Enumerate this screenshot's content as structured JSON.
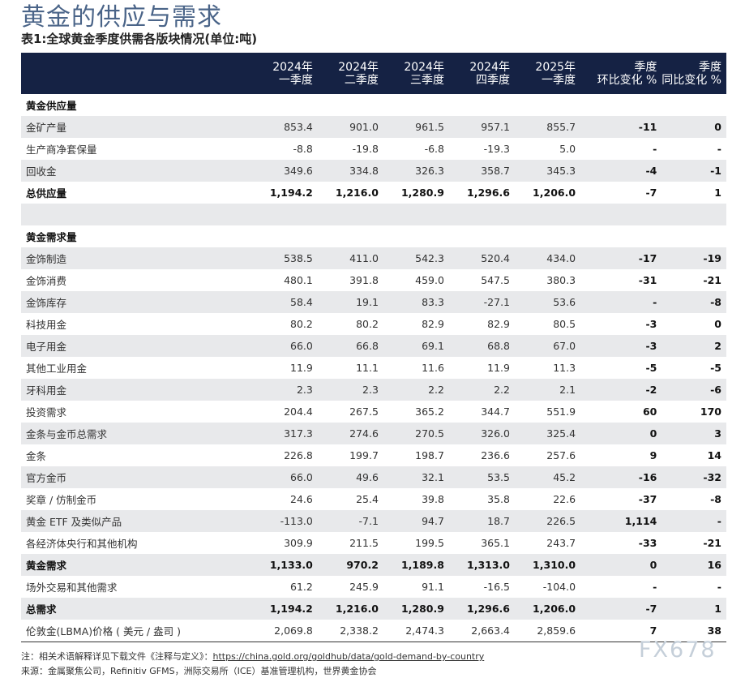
{
  "title": "黄金的供应与需求",
  "subtitle": "表1:全球黄金季度供需各版块情况(单位:吨)",
  "columns": [
    [
      "",
      ""
    ],
    [
      "2024年",
      "一季度"
    ],
    [
      "2024年",
      "二季度"
    ],
    [
      "2024年",
      "三季度"
    ],
    [
      "2024年",
      "四季度"
    ],
    [
      "2025年",
      "一季度"
    ],
    [
      "季度",
      "环比变化 %"
    ],
    [
      "季度",
      "同比变化 %"
    ]
  ],
  "rows": [
    {
      "label": "黄金供应量",
      "values": [
        "",
        "",
        "",
        "",
        "",
        "",
        ""
      ],
      "bold": true,
      "gray": false
    },
    {
      "label": "金矿产量",
      "values": [
        "853.4",
        "901.0",
        "961.5",
        "957.1",
        "855.7",
        "-11",
        "0"
      ],
      "gray": true
    },
    {
      "label": "生产商净套保量",
      "values": [
        "-8.8",
        "-19.8",
        "-6.8",
        "-19.3",
        "5.0",
        "-",
        "-"
      ],
      "gray": false
    },
    {
      "label": "回收金",
      "values": [
        "349.6",
        "334.8",
        "326.3",
        "358.7",
        "345.3",
        "-4",
        "-1"
      ],
      "gray": true
    },
    {
      "label": "总供应量",
      "values": [
        "1,194.2",
        "1,216.0",
        "1,280.9",
        "1,296.6",
        "1,206.0",
        "-7",
        "1"
      ],
      "bold": true,
      "gray": false
    },
    {
      "label": "",
      "values": [
        "",
        "",
        "",
        "",
        "",
        "",
        ""
      ],
      "gray": true
    },
    {
      "label": "黄金需求量",
      "values": [
        "",
        "",
        "",
        "",
        "",
        "",
        ""
      ],
      "bold": true,
      "gray": false
    },
    {
      "label": "金饰制造",
      "values": [
        "538.5",
        "411.0",
        "542.3",
        "520.4",
        "434.0",
        "-17",
        "-19"
      ],
      "gray": true
    },
    {
      "label": "金饰消费",
      "values": [
        "480.1",
        "391.8",
        "459.0",
        "547.5",
        "380.3",
        "-31",
        "-21"
      ],
      "gray": false
    },
    {
      "label": "金饰库存",
      "values": [
        "58.4",
        "19.1",
        "83.3",
        "-27.1",
        "53.6",
        "-",
        "-8"
      ],
      "gray": true
    },
    {
      "label": "科技用金",
      "values": [
        "80.2",
        "80.2",
        "82.9",
        "82.9",
        "80.5",
        "-3",
        "0"
      ],
      "gray": false
    },
    {
      "label": "电子用金",
      "values": [
        "66.0",
        "66.8",
        "69.1",
        "68.8",
        "67.0",
        "-3",
        "2"
      ],
      "gray": true
    },
    {
      "label": "其他工业用金",
      "values": [
        "11.9",
        "11.1",
        "11.6",
        "11.9",
        "11.3",
        "-5",
        "-5"
      ],
      "gray": false
    },
    {
      "label": "牙科用金",
      "values": [
        "2.3",
        "2.3",
        "2.2",
        "2.2",
        "2.1",
        "-2",
        "-6"
      ],
      "gray": true
    },
    {
      "label": "投资需求",
      "values": [
        "204.4",
        "267.5",
        "365.2",
        "344.7",
        "551.9",
        "60",
        "170"
      ],
      "gray": false
    },
    {
      "label": "金条与金币总需求",
      "values": [
        "317.3",
        "274.6",
        "270.5",
        "326.0",
        "325.4",
        "0",
        "3"
      ],
      "gray": true
    },
    {
      "label": "金条",
      "values": [
        "226.8",
        "199.7",
        "198.7",
        "236.6",
        "257.6",
        "9",
        "14"
      ],
      "gray": false
    },
    {
      "label": "官方金币",
      "values": [
        "66.0",
        "49.6",
        "32.1",
        "53.5",
        "45.2",
        "-16",
        "-32"
      ],
      "gray": true
    },
    {
      "label": "奖章 / 仿制金币",
      "values": [
        "24.6",
        "25.4",
        "39.8",
        "35.8",
        "22.6",
        "-37",
        "-8"
      ],
      "gray": false
    },
    {
      "label": "黄金 ETF 及类似产品",
      "values": [
        "-113.0",
        "-7.1",
        "94.7",
        "18.7",
        "226.5",
        "1,114",
        "-"
      ],
      "gray": true
    },
    {
      "label": "各经济体央行和其他机构",
      "values": [
        "309.9",
        "211.5",
        "199.5",
        "365.1",
        "243.7",
        "-33",
        "-21"
      ],
      "gray": false
    },
    {
      "label": "黄金需求",
      "values": [
        "1,133.0",
        "970.2",
        "1,189.8",
        "1,313.0",
        "1,310.0",
        "0",
        "16"
      ],
      "bold": true,
      "gray": true
    },
    {
      "label": "场外交易和其他需求",
      "values": [
        "61.2",
        "245.9",
        "91.1",
        "-16.5",
        "-104.0",
        "-",
        "-"
      ],
      "gray": false
    },
    {
      "label": "总需求",
      "values": [
        "1,194.2",
        "1,216.0",
        "1,280.9",
        "1,296.6",
        "1,206.0",
        "-7",
        "1"
      ],
      "bold": true,
      "gray": true
    },
    {
      "label": "伦敦金(LBMA)价格 ( 美元 / 盎司 )",
      "values": [
        "2,069.8",
        "2,338.2",
        "2,474.3",
        "2,663.4",
        "2,859.6",
        "7",
        "38"
      ],
      "gray": false
    }
  ],
  "notes": {
    "note_prefix": "注：相关术语解释详见下载文件《注释与定义》：",
    "note_link": "https://china.gold.org/goldhub/data/gold-demand-by-country",
    "source": "来源：金属聚焦公司，Refinitiv GFMS，洲际交易所（ICE）基准管理机构，世界黄金协会"
  },
  "watermark": "FX678",
  "colors": {
    "header_bg": "#152244",
    "stripe": "#e8e9eb",
    "title": "#4a6488"
  }
}
